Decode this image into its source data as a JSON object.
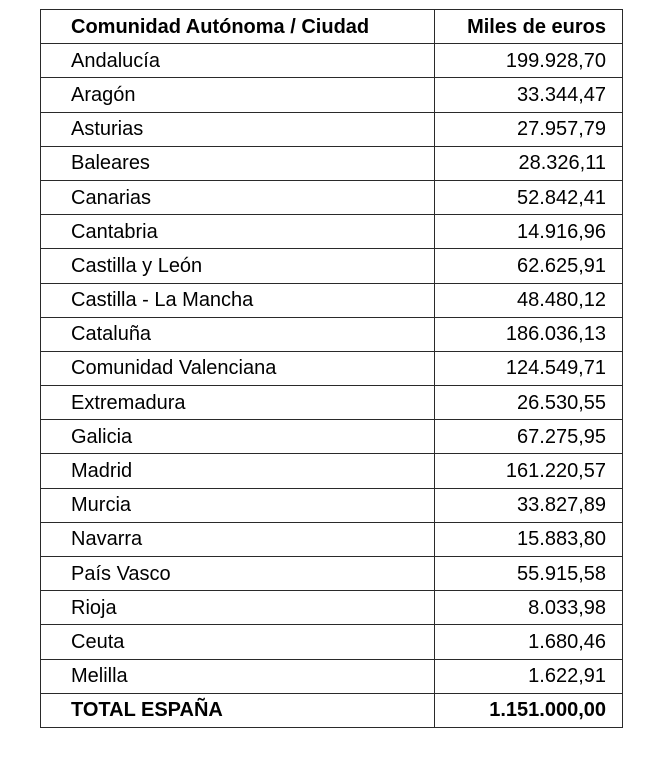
{
  "table": {
    "headers": [
      "Comunidad Autónoma / Ciudad",
      "Miles de euros"
    ],
    "rows": [
      [
        "Andalucía",
        "199.928,70"
      ],
      [
        "Aragón",
        "33.344,47"
      ],
      [
        "Asturias",
        "27.957,79"
      ],
      [
        "Baleares",
        "28.326,11"
      ],
      [
        "Canarias",
        "52.842,41"
      ],
      [
        "Cantabria",
        "14.916,96"
      ],
      [
        "Castilla y León",
        "62.625,91"
      ],
      [
        "Castilla - La Mancha",
        "48.480,12"
      ],
      [
        "Cataluña",
        "186.036,13"
      ],
      [
        "Comunidad Valenciana",
        "124.549,71"
      ],
      [
        "Extremadura",
        "26.530,55"
      ],
      [
        "Galicia",
        "67.275,95"
      ],
      [
        "Madrid",
        "161.220,57"
      ],
      [
        "Murcia",
        "33.827,89"
      ],
      [
        "Navarra",
        "15.883,80"
      ],
      [
        "País Vasco",
        "55.915,58"
      ],
      [
        "Rioja",
        "8.033,98"
      ],
      [
        "Ceuta",
        "1.680,46"
      ],
      [
        "Melilla",
        "1.622,91"
      ]
    ],
    "total": [
      "TOTAL ESPAÑA",
      "1.151.000,00"
    ]
  }
}
